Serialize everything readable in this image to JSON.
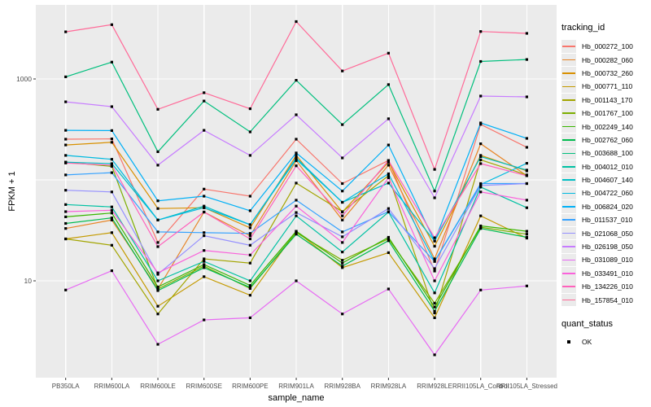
{
  "chart_data": {
    "type": "line",
    "xlabel": "sample_name",
    "ylabel": "FPKM + 1",
    "y_scale": "log10",
    "ylim": [
      1.1,
      5400
    ],
    "grid": true,
    "panel_background": "#EBEBEB",
    "gridline_color": "#FFFFFF",
    "tick_color": "#333333",
    "tick_label_color": "#4D4D4D",
    "point_color": "#000000",
    "y_gridline_values": [
      10,
      100,
      1000
    ],
    "y_tick_labels": [
      {
        "value": 10,
        "label": "10"
      },
      {
        "value": 1000,
        "label": "1000"
      }
    ],
    "categories": [
      "PB350LA",
      "RRIM600LA",
      "RRIM600LE",
      "RRIM600SE",
      "RRIM600PE",
      "RRIM901LA",
      "RRIM928BA",
      "RRIM928LA",
      "RRIM928LE",
      "RRII105LA_Control",
      "RRII105LA_Stressed"
    ],
    "legend": {
      "color_title": "tracking_id",
      "shape_title": "quant_status",
      "shape_items": [
        {
          "label": "OK",
          "marker": "black-square"
        }
      ]
    },
    "series": [
      {
        "name": "Hb_000272_100",
        "color": "#F8766D",
        "values": [
          253,
          255,
          24,
          81,
          69,
          253,
          92,
          156,
          12.5,
          355,
          210
        ]
      },
      {
        "name": "Hb_000282_060",
        "color": "#E88526",
        "values": [
          33,
          40,
          8.3,
          48,
          28,
          155,
          40,
          140,
          16.5,
          228,
          110
        ]
      },
      {
        "name": "Hb_000732_260",
        "color": "#D89000",
        "values": [
          222,
          236,
          52,
          53,
          33.5,
          175,
          48,
          150,
          22,
          175,
          123
        ]
      },
      {
        "name": "Hb_000771_110",
        "color": "#C49A00",
        "values": [
          26,
          30,
          5.6,
          11,
          7.2,
          31,
          13.5,
          19,
          4.3,
          44,
          26.5
        ]
      },
      {
        "name": "Hb_001143_170",
        "color": "#A3A500",
        "values": [
          26,
          22.5,
          4.7,
          16.5,
          15,
          93,
          48.5,
          110,
          4.8,
          158,
          112
        ]
      },
      {
        "name": "Hb_001767_100",
        "color": "#7CAE00",
        "values": [
          150,
          136,
          8.3,
          14,
          8.4,
          30,
          16,
          26,
          6,
          34,
          29
        ]
      },
      {
        "name": "Hb_002249_140",
        "color": "#39B600",
        "values": [
          43,
          47,
          8.7,
          14.5,
          9,
          31,
          15,
          27,
          5.5,
          35,
          31
        ]
      },
      {
        "name": "Hb_002762_060",
        "color": "#00BB4E",
        "values": [
          37,
          42,
          8,
          13.5,
          8.6,
          29,
          14,
          25,
          5,
          33,
          27
        ]
      },
      {
        "name": "Hb_003688_100",
        "color": "#00BF7D",
        "values": [
          1050,
          1470,
          190,
          605,
          299,
          970,
          353,
          880,
          77.5,
          1490,
          1560
        ]
      },
      {
        "name": "Hb_004012_010",
        "color": "#00C1A3",
        "values": [
          57,
          54,
          10,
          15.6,
          10,
          44,
          19.3,
          48,
          7.6,
          85,
          53
        ]
      },
      {
        "name": "Hb_004607_140",
        "color": "#00BFC4",
        "values": [
          150,
          145,
          40,
          55,
          36,
          160,
          60,
          93,
          24.8,
          170,
          125
        ]
      },
      {
        "name": "Hb_004722_060",
        "color": "#00BAE0",
        "values": [
          175,
          160,
          40,
          53,
          36,
          165,
          60,
          115,
          15.6,
          90,
          146
        ]
      },
      {
        "name": "Hb_006824_020",
        "color": "#00B0F6",
        "values": [
          310,
          308,
          62,
          69,
          49.5,
          185,
          77.5,
          222,
          24.8,
          367,
          258
        ]
      },
      {
        "name": "Hb_011537_010",
        "color": "#35A2FF",
        "values": [
          112,
          118,
          30.5,
          30,
          29.5,
          63,
          30.5,
          48.5,
          15.6,
          92,
          92
        ]
      },
      {
        "name": "Hb_021068_050",
        "color": "#9590FF",
        "values": [
          79,
          76,
          11.6,
          28,
          22.5,
          47.5,
          27.3,
          52,
          13.2,
          88,
          92
        ]
      },
      {
        "name": "Hb_026198_050",
        "color": "#C77CFF",
        "values": [
          594,
          532,
          140,
          310,
          175,
          442,
          165,
          403,
          66.5,
          677,
          665
        ]
      },
      {
        "name": "Hb_031089_010",
        "color": "#E76BF3",
        "values": [
          8.1,
          12.6,
          2.35,
          4.1,
          4.3,
          10,
          4.7,
          8.3,
          1.85,
          8.1,
          8.9
        ]
      },
      {
        "name": "Hb_033491_010",
        "color": "#FA62DB",
        "values": [
          48.5,
          50,
          12,
          20,
          18,
          55,
          24,
          105,
          10,
          76,
          63
        ]
      },
      {
        "name": "Hb_134226_010",
        "color": "#FF62BC",
        "values": [
          147,
          140,
          21.8,
          48,
          26,
          138,
          44,
          156,
          26.7,
          145,
          110
        ]
      },
      {
        "name": "Hb_157854_010",
        "color": "#FF6A98",
        "values": [
          2930,
          3450,
          500,
          730,
          507,
          3700,
          1200,
          1800,
          127,
          2950,
          2830
        ]
      }
    ]
  }
}
